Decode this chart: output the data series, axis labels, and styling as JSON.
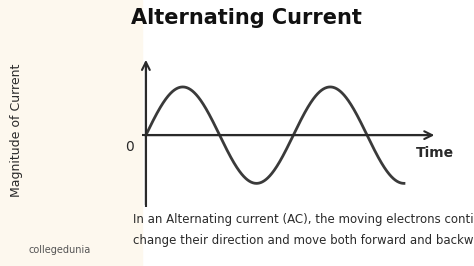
{
  "title": "Alternating Current",
  "ylabel": "Magnitude of Current",
  "xlabel": "Time",
  "origin_label": "0",
  "caption_line1": "In an Alternating current (AC), the moving electrons continuously",
  "caption_line2": "change their direction and move both forward and backward",
  "bg_color": "#ffffff",
  "left_bg_color": "#fdf8ee",
  "wave_color": "#3a3a3a",
  "axis_color": "#2a2a2a",
  "title_fontsize": 15,
  "ylabel_fontsize": 9,
  "xlabel_fontsize": 10,
  "caption_fontsize": 8.5,
  "wave_amplitude": 1.0,
  "x_end": 3.5,
  "ylim": [
    -1.5,
    1.7
  ],
  "xlim": [
    -0.05,
    4.0
  ]
}
